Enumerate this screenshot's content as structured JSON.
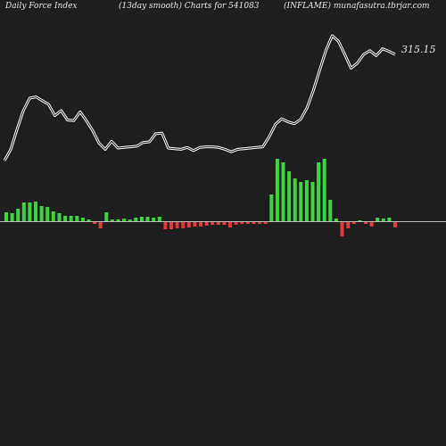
{
  "header": {
    "left": "Daily Force  Index",
    "center": "(13day smooth) Charts for 541083",
    "right": "(INFLAME) munafasutra.tbrjar.com"
  },
  "chart_data": {
    "type": "bar",
    "title": "Daily Force  Index",
    "subtitle": "(13day smooth) Charts for 541083",
    "source_text": "(INFLAME) munafasutra.tbrjar.com",
    "last_value_label": "315.15",
    "colors": {
      "positive": "#3fd43f",
      "negative": "#e23a3a",
      "line": "#ffffff",
      "zero_line": "#bfbfbf",
      "background": "#1e1e1e"
    },
    "bar_values": [
      10,
      9,
      14,
      21,
      21,
      22,
      17,
      16,
      11,
      9,
      6,
      6,
      6,
      4,
      2,
      -2,
      -7,
      10,
      2,
      2,
      3,
      2,
      4,
      5,
      5,
      4,
      5,
      -8,
      -8,
      -7,
      -7,
      -6,
      -5,
      -5,
      -4,
      -3,
      -3,
      -3,
      -6,
      -3,
      -2,
      -2,
      -2,
      -2,
      -2,
      30,
      70,
      66,
      56,
      48,
      44,
      46,
      44,
      66,
      70,
      24,
      3,
      -16,
      -7,
      -2,
      1,
      -2,
      -5,
      4,
      3,
      4,
      -6
    ],
    "line_values": [
      100,
      118,
      150,
      180,
      200,
      202,
      196,
      190,
      172,
      180,
      165,
      164,
      178,
      164,
      148,
      128,
      118,
      131,
      120,
      121,
      122,
      123,
      129,
      130,
      143,
      144,
      120,
      119,
      118,
      121,
      116,
      121,
      122,
      122,
      121,
      118,
      114,
      118,
      119,
      120,
      121,
      122,
      138,
      158,
      167,
      162,
      159,
      166,
      184,
      212,
      244,
      276,
      300,
      291,
      270,
      248,
      256,
      270,
      276,
      268,
      279,
      275,
      270
    ]
  }
}
